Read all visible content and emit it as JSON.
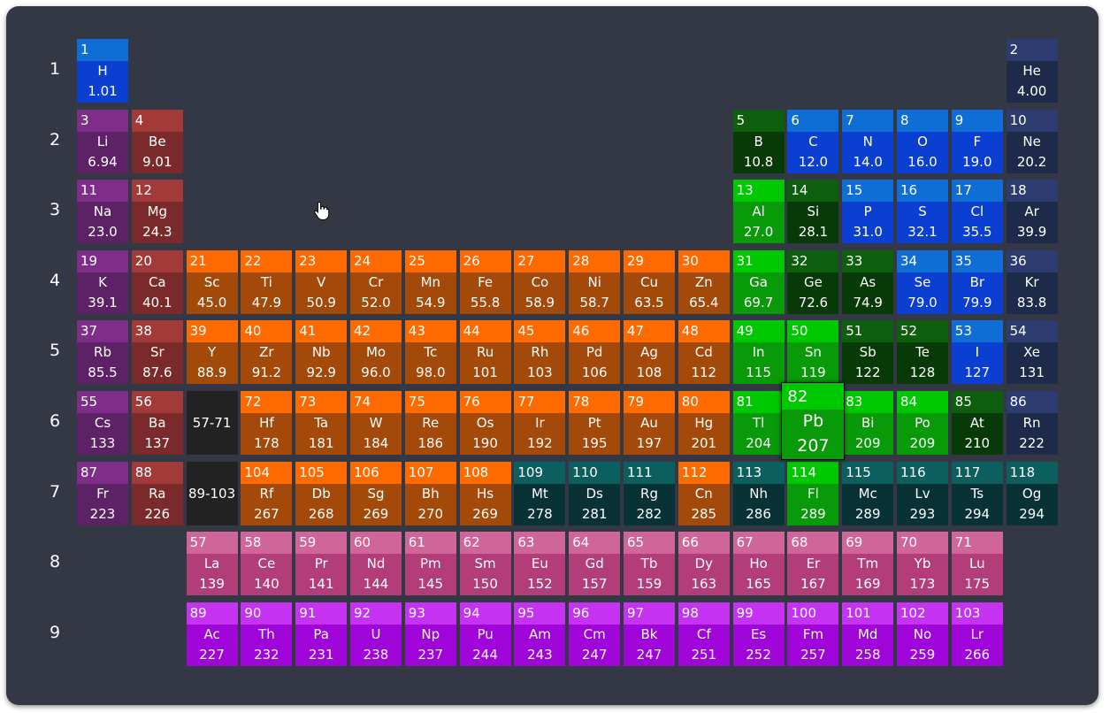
{
  "row_labels": [
    "1",
    "2",
    "3",
    "4",
    "5",
    "6",
    "7",
    "8",
    "9"
  ],
  "colors": {
    "nonmetal": [
      "#0e6ed6",
      "#0a3fd2"
    ],
    "noble": [
      "#2c3c70",
      "#1e2a4a"
    ],
    "alkali": [
      "#7e2d88",
      "#5d2265"
    ],
    "alkaline": [
      "#a33a3a",
      "#7a2a2a"
    ],
    "metalloid": [
      "#0d5e0d",
      "#073a07"
    ],
    "post": [
      "#00c800",
      "#099a09"
    ],
    "transition": [
      "#ff6a00",
      "#a34a0a"
    ],
    "unknown": [
      "#0c5f5f",
      "#083236"
    ],
    "range": [
      "#222222",
      "#222222"
    ],
    "lanth": [
      "#cf6599",
      "#b23d7a"
    ],
    "actin": [
      "#c532f2",
      "#9f04d8"
    ]
  },
  "selected": "82",
  "elements": [
    {
      "r": 1,
      "c": 1,
      "n": "1",
      "s": "H",
      "m": "1.01",
      "t": "nonmetal"
    },
    {
      "r": 1,
      "c": 18,
      "n": "2",
      "s": "He",
      "m": "4.00",
      "t": "noble"
    },
    {
      "r": 2,
      "c": 1,
      "n": "3",
      "s": "Li",
      "m": "6.94",
      "t": "alkali"
    },
    {
      "r": 2,
      "c": 2,
      "n": "4",
      "s": "Be",
      "m": "9.01",
      "t": "alkaline"
    },
    {
      "r": 2,
      "c": 13,
      "n": "5",
      "s": "B",
      "m": "10.8",
      "t": "metalloid"
    },
    {
      "r": 2,
      "c": 14,
      "n": "6",
      "s": "C",
      "m": "12.0",
      "t": "nonmetal"
    },
    {
      "r": 2,
      "c": 15,
      "n": "7",
      "s": "N",
      "m": "14.0",
      "t": "nonmetal"
    },
    {
      "r": 2,
      "c": 16,
      "n": "8",
      "s": "O",
      "m": "16.0",
      "t": "nonmetal"
    },
    {
      "r": 2,
      "c": 17,
      "n": "9",
      "s": "F",
      "m": "19.0",
      "t": "nonmetal"
    },
    {
      "r": 2,
      "c": 18,
      "n": "10",
      "s": "Ne",
      "m": "20.2",
      "t": "noble"
    },
    {
      "r": 3,
      "c": 1,
      "n": "11",
      "s": "Na",
      "m": "23.0",
      "t": "alkali"
    },
    {
      "r": 3,
      "c": 2,
      "n": "12",
      "s": "Mg",
      "m": "24.3",
      "t": "alkaline"
    },
    {
      "r": 3,
      "c": 13,
      "n": "13",
      "s": "Al",
      "m": "27.0",
      "t": "post"
    },
    {
      "r": 3,
      "c": 14,
      "n": "14",
      "s": "Si",
      "m": "28.1",
      "t": "metalloid"
    },
    {
      "r": 3,
      "c": 15,
      "n": "15",
      "s": "P",
      "m": "31.0",
      "t": "nonmetal"
    },
    {
      "r": 3,
      "c": 16,
      "n": "16",
      "s": "S",
      "m": "32.1",
      "t": "nonmetal"
    },
    {
      "r": 3,
      "c": 17,
      "n": "17",
      "s": "Cl",
      "m": "35.5",
      "t": "nonmetal"
    },
    {
      "r": 3,
      "c": 18,
      "n": "18",
      "s": "Ar",
      "m": "39.9",
      "t": "noble"
    },
    {
      "r": 4,
      "c": 1,
      "n": "19",
      "s": "K",
      "m": "39.1",
      "t": "alkali"
    },
    {
      "r": 4,
      "c": 2,
      "n": "20",
      "s": "Ca",
      "m": "40.1",
      "t": "alkaline"
    },
    {
      "r": 4,
      "c": 3,
      "n": "21",
      "s": "Sc",
      "m": "45.0",
      "t": "transition"
    },
    {
      "r": 4,
      "c": 4,
      "n": "22",
      "s": "Ti",
      "m": "47.9",
      "t": "transition"
    },
    {
      "r": 4,
      "c": 5,
      "n": "23",
      "s": "V",
      "m": "50.9",
      "t": "transition"
    },
    {
      "r": 4,
      "c": 6,
      "n": "24",
      "s": "Cr",
      "m": "52.0",
      "t": "transition"
    },
    {
      "r": 4,
      "c": 7,
      "n": "25",
      "s": "Mn",
      "m": "54.9",
      "t": "transition"
    },
    {
      "r": 4,
      "c": 8,
      "n": "26",
      "s": "Fe",
      "m": "55.8",
      "t": "transition"
    },
    {
      "r": 4,
      "c": 9,
      "n": "27",
      "s": "Co",
      "m": "58.9",
      "t": "transition"
    },
    {
      "r": 4,
      "c": 10,
      "n": "28",
      "s": "Ni",
      "m": "58.7",
      "t": "transition"
    },
    {
      "r": 4,
      "c": 11,
      "n": "29",
      "s": "Cu",
      "m": "63.5",
      "t": "transition"
    },
    {
      "r": 4,
      "c": 12,
      "n": "30",
      "s": "Zn",
      "m": "65.4",
      "t": "transition"
    },
    {
      "r": 4,
      "c": 13,
      "n": "31",
      "s": "Ga",
      "m": "69.7",
      "t": "post"
    },
    {
      "r": 4,
      "c": 14,
      "n": "32",
      "s": "Ge",
      "m": "72.6",
      "t": "metalloid"
    },
    {
      "r": 4,
      "c": 15,
      "n": "33",
      "s": "As",
      "m": "74.9",
      "t": "metalloid"
    },
    {
      "r": 4,
      "c": 16,
      "n": "34",
      "s": "Se",
      "m": "79.0",
      "t": "nonmetal"
    },
    {
      "r": 4,
      "c": 17,
      "n": "35",
      "s": "Br",
      "m": "79.9",
      "t": "nonmetal"
    },
    {
      "r": 4,
      "c": 18,
      "n": "36",
      "s": "Kr",
      "m": "83.8",
      "t": "noble"
    },
    {
      "r": 5,
      "c": 1,
      "n": "37",
      "s": "Rb",
      "m": "85.5",
      "t": "alkali"
    },
    {
      "r": 5,
      "c": 2,
      "n": "38",
      "s": "Sr",
      "m": "87.6",
      "t": "alkaline"
    },
    {
      "r": 5,
      "c": 3,
      "n": "39",
      "s": "Y",
      "m": "88.9",
      "t": "transition"
    },
    {
      "r": 5,
      "c": 4,
      "n": "40",
      "s": "Zr",
      "m": "91.2",
      "t": "transition"
    },
    {
      "r": 5,
      "c": 5,
      "n": "41",
      "s": "Nb",
      "m": "92.9",
      "t": "transition"
    },
    {
      "r": 5,
      "c": 6,
      "n": "42",
      "s": "Mo",
      "m": "96.0",
      "t": "transition"
    },
    {
      "r": 5,
      "c": 7,
      "n": "43",
      "s": "Tc",
      "m": "98.0",
      "t": "transition"
    },
    {
      "r": 5,
      "c": 8,
      "n": "44",
      "s": "Ru",
      "m": "101",
      "t": "transition"
    },
    {
      "r": 5,
      "c": 9,
      "n": "45",
      "s": "Rh",
      "m": "103",
      "t": "transition"
    },
    {
      "r": 5,
      "c": 10,
      "n": "46",
      "s": "Pd",
      "m": "106",
      "t": "transition"
    },
    {
      "r": 5,
      "c": 11,
      "n": "47",
      "s": "Ag",
      "m": "108",
      "t": "transition"
    },
    {
      "r": 5,
      "c": 12,
      "n": "48",
      "s": "Cd",
      "m": "112",
      "t": "transition"
    },
    {
      "r": 5,
      "c": 13,
      "n": "49",
      "s": "In",
      "m": "115",
      "t": "post"
    },
    {
      "r": 5,
      "c": 14,
      "n": "50",
      "s": "Sn",
      "m": "119",
      "t": "post"
    },
    {
      "r": 5,
      "c": 15,
      "n": "51",
      "s": "Sb",
      "m": "122",
      "t": "metalloid"
    },
    {
      "r": 5,
      "c": 16,
      "n": "52",
      "s": "Te",
      "m": "128",
      "t": "metalloid"
    },
    {
      "r": 5,
      "c": 17,
      "n": "53",
      "s": "I",
      "m": "127",
      "t": "nonmetal"
    },
    {
      "r": 5,
      "c": 18,
      "n": "54",
      "s": "Xe",
      "m": "131",
      "t": "noble"
    },
    {
      "r": 6,
      "c": 1,
      "n": "55",
      "s": "Cs",
      "m": "133",
      "t": "alkali"
    },
    {
      "r": 6,
      "c": 2,
      "n": "56",
      "s": "Ba",
      "m": "137",
      "t": "alkaline"
    },
    {
      "r": 6,
      "c": 3,
      "n": "",
      "s": "57-71",
      "m": "",
      "t": "range"
    },
    {
      "r": 6,
      "c": 4,
      "n": "72",
      "s": "Hf",
      "m": "178",
      "t": "transition"
    },
    {
      "r": 6,
      "c": 5,
      "n": "73",
      "s": "Ta",
      "m": "181",
      "t": "transition"
    },
    {
      "r": 6,
      "c": 6,
      "n": "74",
      "s": "W",
      "m": "184",
      "t": "transition"
    },
    {
      "r": 6,
      "c": 7,
      "n": "75",
      "s": "Re",
      "m": "186",
      "t": "transition"
    },
    {
      "r": 6,
      "c": 8,
      "n": "76",
      "s": "Os",
      "m": "190",
      "t": "transition"
    },
    {
      "r": 6,
      "c": 9,
      "n": "77",
      "s": "Ir",
      "m": "192",
      "t": "transition"
    },
    {
      "r": 6,
      "c": 10,
      "n": "78",
      "s": "Pt",
      "m": "195",
      "t": "transition"
    },
    {
      "r": 6,
      "c": 11,
      "n": "79",
      "s": "Au",
      "m": "197",
      "t": "transition"
    },
    {
      "r": 6,
      "c": 12,
      "n": "80",
      "s": "Hg",
      "m": "201",
      "t": "transition"
    },
    {
      "r": 6,
      "c": 13,
      "n": "81",
      "s": "Tl",
      "m": "204",
      "t": "post"
    },
    {
      "r": 6,
      "c": 14,
      "n": "82",
      "s": "Pb",
      "m": "207",
      "t": "post"
    },
    {
      "r": 6,
      "c": 15,
      "n": "83",
      "s": "Bi",
      "m": "209",
      "t": "post"
    },
    {
      "r": 6,
      "c": 16,
      "n": "84",
      "s": "Po",
      "m": "209",
      "t": "post"
    },
    {
      "r": 6,
      "c": 17,
      "n": "85",
      "s": "At",
      "m": "210",
      "t": "metalloid"
    },
    {
      "r": 6,
      "c": 18,
      "n": "86",
      "s": "Rn",
      "m": "222",
      "t": "noble"
    },
    {
      "r": 7,
      "c": 1,
      "n": "87",
      "s": "Fr",
      "m": "223",
      "t": "alkali"
    },
    {
      "r": 7,
      "c": 2,
      "n": "88",
      "s": "Ra",
      "m": "226",
      "t": "alkaline"
    },
    {
      "r": 7,
      "c": 3,
      "n": "",
      "s": "89-103",
      "m": "",
      "t": "range"
    },
    {
      "r": 7,
      "c": 4,
      "n": "104",
      "s": "Rf",
      "m": "267",
      "t": "transition"
    },
    {
      "r": 7,
      "c": 5,
      "n": "105",
      "s": "Db",
      "m": "268",
      "t": "transition"
    },
    {
      "r": 7,
      "c": 6,
      "n": "106",
      "s": "Sg",
      "m": "269",
      "t": "transition"
    },
    {
      "r": 7,
      "c": 7,
      "n": "107",
      "s": "Bh",
      "m": "270",
      "t": "transition"
    },
    {
      "r": 7,
      "c": 8,
      "n": "108",
      "s": "Hs",
      "m": "269",
      "t": "transition"
    },
    {
      "r": 7,
      "c": 9,
      "n": "109",
      "s": "Mt",
      "m": "278",
      "t": "unknown"
    },
    {
      "r": 7,
      "c": 10,
      "n": "110",
      "s": "Ds",
      "m": "281",
      "t": "unknown"
    },
    {
      "r": 7,
      "c": 11,
      "n": "111",
      "s": "Rg",
      "m": "282",
      "t": "unknown"
    },
    {
      "r": 7,
      "c": 12,
      "n": "112",
      "s": "Cn",
      "m": "285",
      "t": "transition"
    },
    {
      "r": 7,
      "c": 13,
      "n": "113",
      "s": "Nh",
      "m": "286",
      "t": "unknown"
    },
    {
      "r": 7,
      "c": 14,
      "n": "114",
      "s": "Fl",
      "m": "289",
      "t": "post"
    },
    {
      "r": 7,
      "c": 15,
      "n": "115",
      "s": "Mc",
      "m": "289",
      "t": "unknown"
    },
    {
      "r": 7,
      "c": 16,
      "n": "116",
      "s": "Lv",
      "m": "293",
      "t": "unknown"
    },
    {
      "r": 7,
      "c": 17,
      "n": "117",
      "s": "Ts",
      "m": "294",
      "t": "unknown"
    },
    {
      "r": 7,
      "c": 18,
      "n": "118",
      "s": "Og",
      "m": "294",
      "t": "unknown"
    },
    {
      "r": 8,
      "c": 3,
      "n": "57",
      "s": "La",
      "m": "139",
      "t": "lanth"
    },
    {
      "r": 8,
      "c": 4,
      "n": "58",
      "s": "Ce",
      "m": "140",
      "t": "lanth"
    },
    {
      "r": 8,
      "c": 5,
      "n": "59",
      "s": "Pr",
      "m": "141",
      "t": "lanth"
    },
    {
      "r": 8,
      "c": 6,
      "n": "60",
      "s": "Nd",
      "m": "144",
      "t": "lanth"
    },
    {
      "r": 8,
      "c": 7,
      "n": "61",
      "s": "Pm",
      "m": "145",
      "t": "lanth"
    },
    {
      "r": 8,
      "c": 8,
      "n": "62",
      "s": "Sm",
      "m": "150",
      "t": "lanth"
    },
    {
      "r": 8,
      "c": 9,
      "n": "63",
      "s": "Eu",
      "m": "152",
      "t": "lanth"
    },
    {
      "r": 8,
      "c": 10,
      "n": "64",
      "s": "Gd",
      "m": "157",
      "t": "lanth"
    },
    {
      "r": 8,
      "c": 11,
      "n": "65",
      "s": "Tb",
      "m": "159",
      "t": "lanth"
    },
    {
      "r": 8,
      "c": 12,
      "n": "66",
      "s": "Dy",
      "m": "163",
      "t": "lanth"
    },
    {
      "r": 8,
      "c": 13,
      "n": "67",
      "s": "Ho",
      "m": "165",
      "t": "lanth"
    },
    {
      "r": 8,
      "c": 14,
      "n": "68",
      "s": "Er",
      "m": "167",
      "t": "lanth"
    },
    {
      "r": 8,
      "c": 15,
      "n": "69",
      "s": "Tm",
      "m": "169",
      "t": "lanth"
    },
    {
      "r": 8,
      "c": 16,
      "n": "70",
      "s": "Yb",
      "m": "173",
      "t": "lanth"
    },
    {
      "r": 8,
      "c": 17,
      "n": "71",
      "s": "Lu",
      "m": "175",
      "t": "lanth"
    },
    {
      "r": 9,
      "c": 3,
      "n": "89",
      "s": "Ac",
      "m": "227",
      "t": "actin"
    },
    {
      "r": 9,
      "c": 4,
      "n": "90",
      "s": "Th",
      "m": "232",
      "t": "actin"
    },
    {
      "r": 9,
      "c": 5,
      "n": "91",
      "s": "Pa",
      "m": "231",
      "t": "actin"
    },
    {
      "r": 9,
      "c": 6,
      "n": "92",
      "s": "U",
      "m": "238",
      "t": "actin"
    },
    {
      "r": 9,
      "c": 7,
      "n": "93",
      "s": "Np",
      "m": "237",
      "t": "actin"
    },
    {
      "r": 9,
      "c": 8,
      "n": "94",
      "s": "Pu",
      "m": "244",
      "t": "actin"
    },
    {
      "r": 9,
      "c": 9,
      "n": "95",
      "s": "Am",
      "m": "243",
      "t": "actin"
    },
    {
      "r": 9,
      "c": 10,
      "n": "96",
      "s": "Cm",
      "m": "247",
      "t": "actin"
    },
    {
      "r": 9,
      "c": 11,
      "n": "97",
      "s": "Bk",
      "m": "247",
      "t": "actin"
    },
    {
      "r": 9,
      "c": 12,
      "n": "98",
      "s": "Cf",
      "m": "251",
      "t": "actin"
    },
    {
      "r": 9,
      "c": 13,
      "n": "99",
      "s": "Es",
      "m": "252",
      "t": "actin"
    },
    {
      "r": 9,
      "c": 14,
      "n": "100",
      "s": "Fm",
      "m": "257",
      "t": "actin"
    },
    {
      "r": 9,
      "c": 15,
      "n": "101",
      "s": "Md",
      "m": "258",
      "t": "actin"
    },
    {
      "r": 9,
      "c": 16,
      "n": "102",
      "s": "No",
      "m": "259",
      "t": "actin"
    },
    {
      "r": 9,
      "c": 17,
      "n": "103",
      "s": "Lr",
      "m": "266",
      "t": "actin"
    }
  ]
}
